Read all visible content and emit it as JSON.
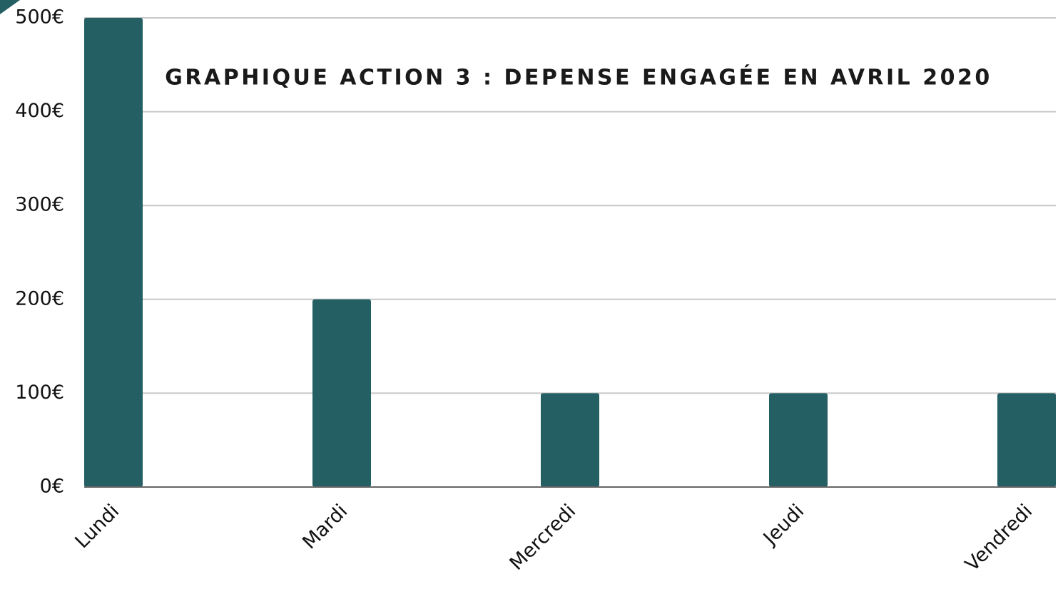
{
  "chart_data": {
    "type": "bar",
    "title": "GRAPHIQUE ACTION 3 : DEPENSE ENGAGÉE EN AVRIL 2020",
    "categories": [
      "Lundi",
      "Mardi",
      "Mercredi",
      "Jeudi",
      "Vendredi"
    ],
    "values": [
      500,
      200,
      100,
      100,
      100
    ],
    "color": "#235f63",
    "ylim": [
      0,
      500
    ],
    "yticks": [
      {
        "value": 0,
        "label": "0€"
      },
      {
        "value": 100,
        "label": "100€"
      },
      {
        "value": 200,
        "label": "200€"
      },
      {
        "value": 300,
        "label": "300€"
      },
      {
        "value": 400,
        "label": "400€"
      },
      {
        "value": 500,
        "label": "500€"
      }
    ],
    "grid": true
  }
}
